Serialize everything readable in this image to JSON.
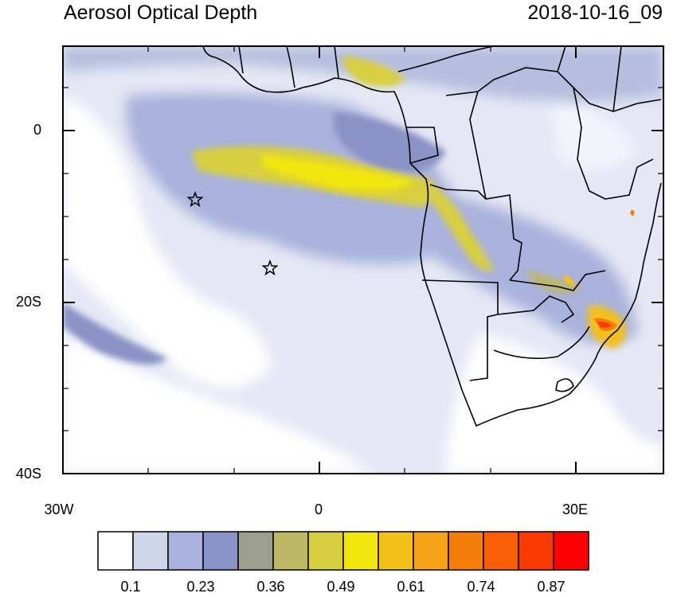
{
  "header": {
    "title": "Aerosol Optical Depth",
    "timestamp": "2018-10-16_09"
  },
  "axes": {
    "y_labels": [
      "0",
      "20S",
      "40S"
    ],
    "x_labels": [
      "30W",
      "0",
      "30E"
    ],
    "lon_range": [
      -30,
      40
    ],
    "lat_range": [
      -40,
      10
    ]
  },
  "markers": [
    {
      "type": "star",
      "lon": -14.4,
      "lat": -7.9
    },
    {
      "type": "star",
      "lon": -5.7,
      "lat": -16.0
    }
  ],
  "colorbar": {
    "tick_labels": [
      "0.1",
      "0.23",
      "0.36",
      "0.49",
      "0.61",
      "0.74",
      "0.87"
    ],
    "colors": [
      "#ffffff",
      "#cfd6ea",
      "#a9b2dc",
      "#8a93c6",
      "#9ea08f",
      "#bdb766",
      "#d8cf40",
      "#f2e70c",
      "#f3c01a",
      "#f3a313",
      "#f57e0b",
      "#f75e05",
      "#f93b03",
      "#fc0000"
    ]
  }
}
